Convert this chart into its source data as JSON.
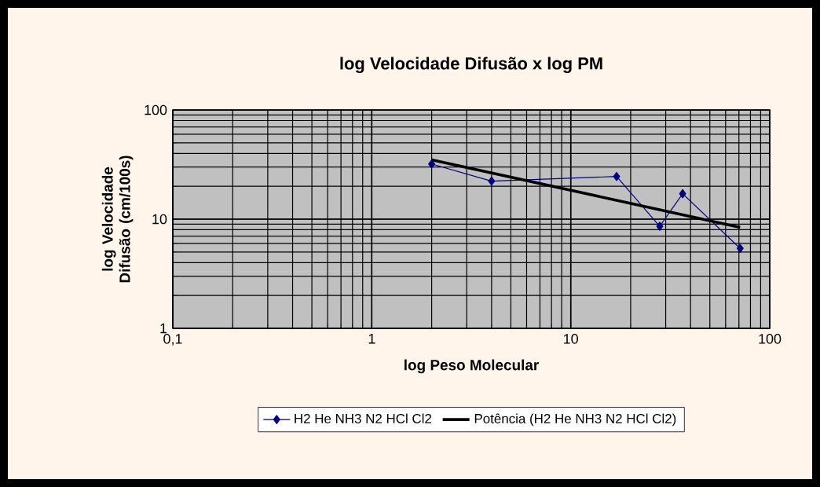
{
  "chart_data": {
    "type": "line",
    "title": "log Velocidade Difusão x log PM",
    "xlabel": "log Peso Molecular",
    "ylabel": "log Velocidade Difusão (cm/100s)",
    "log": "xy",
    "xlim": [
      0.1,
      100
    ],
    "ylim": [
      1,
      100
    ],
    "xticks": [
      {
        "value": 0.1,
        "label": "0,1"
      },
      1,
      10,
      100
    ],
    "yticks": [
      1,
      10,
      100
    ],
    "grid": true,
    "legend": "bottom",
    "series": [
      {
        "name": "H2 He NH3 N2 HCl Cl2",
        "color": "#000080",
        "marker": "diamond",
        "line_style": "solid",
        "x": [
          2,
          4,
          17,
          28,
          36.5,
          71
        ],
        "values": [
          32,
          22.3,
          24.6,
          8.6,
          17.1,
          5.4
        ]
      },
      {
        "name": "Potência (H2 He NH3 N2 HCl Cl2)",
        "color": "#000000",
        "marker": "none",
        "line_style": "solid",
        "x": [
          2,
          71
        ],
        "values": [
          35,
          8.4
        ]
      }
    ]
  }
}
